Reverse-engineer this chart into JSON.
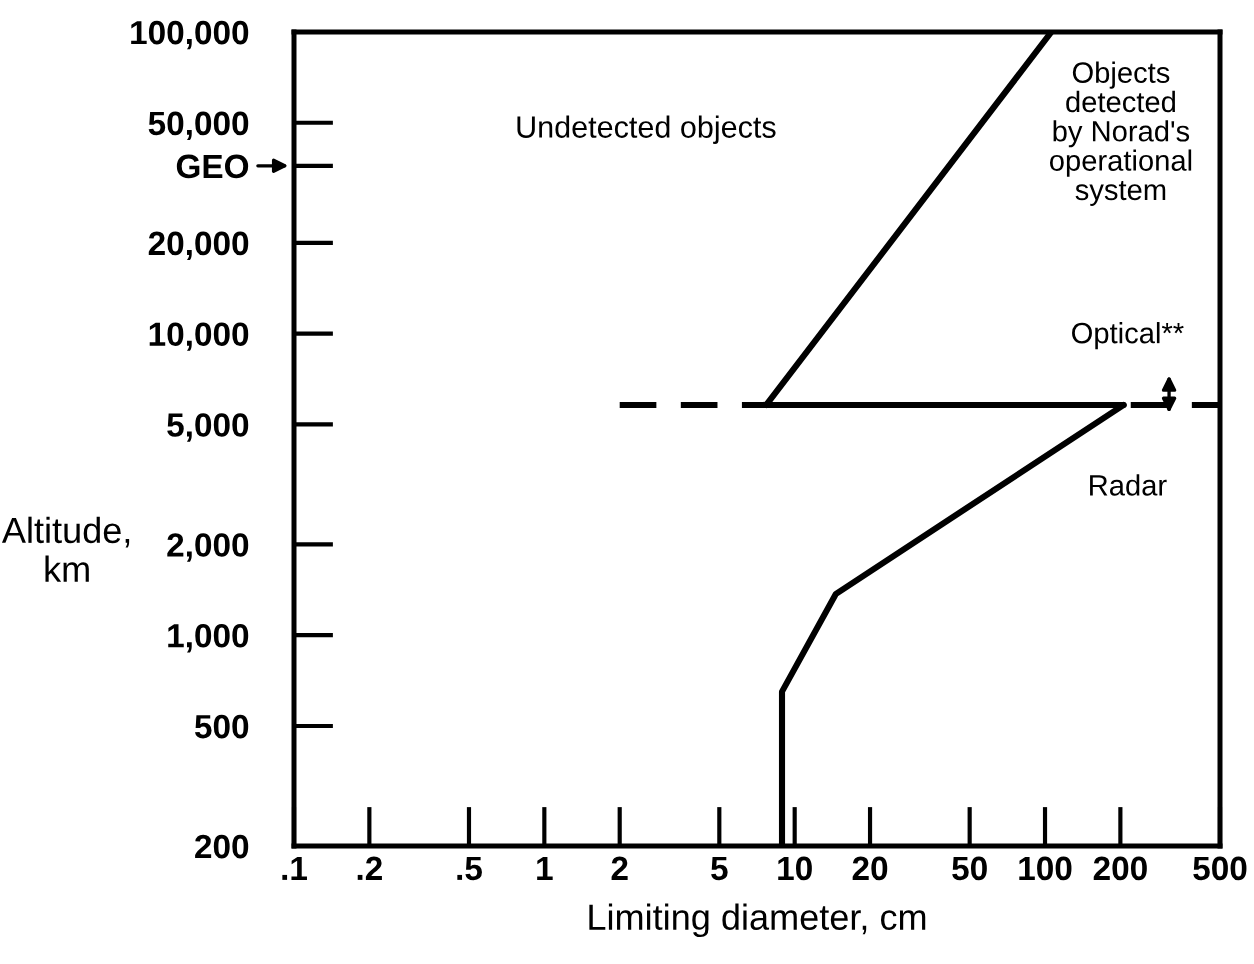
{
  "chart_data": {
    "type": "line",
    "xlabel": "Limiting diameter, cm",
    "ylabel": "Altitude,\nkm",
    "log": "xy",
    "xlim": [
      0.1,
      500
    ],
    "ylim": [
      200,
      100000
    ],
    "xticks": [
      {
        "value": 0.1,
        "label": ".1"
      },
      {
        "value": 0.2,
        "label": ".2"
      },
      {
        "value": 0.5,
        "label": ".5"
      },
      1,
      2,
      5,
      10,
      20,
      50,
      100,
      200,
      500
    ],
    "yticks": [
      200,
      500,
      {
        "value": 1000,
        "label": "1,000"
      },
      {
        "value": 2000,
        "label": "2,000"
      },
      {
        "value": 5000,
        "label": "5,000"
      },
      {
        "value": 10000,
        "label": "10,000"
      },
      {
        "value": 20000,
        "label": "20,000"
      },
      {
        "value": 36000,
        "label": "GEO"
      },
      {
        "value": 50000,
        "label": "50,000"
      },
      {
        "value": 100000,
        "label": "100,000"
      }
    ],
    "series": [
      {
        "color": "#000000",
        "x": [
          8.9,
          8.9,
          14.6,
          206
        ],
        "values": [
          200,
          650,
          1370,
          5800
        ],
        "line_style": "solid"
      },
      {
        "color": "#000000",
        "x": [
          7.7,
          106
        ],
        "values": [
          5800,
          100000
        ],
        "line_style": "solid"
      },
      {
        "color": "#000000",
        "x": [
          7.7,
          206
        ],
        "values": [
          5800,
          5800
        ],
        "line_style": "solid"
      },
      {
        "color": "#000000",
        "x": [
          2,
          7.7
        ],
        "values": [
          5800,
          5800
        ],
        "line_style": "dashed"
      },
      {
        "color": "#000000",
        "x": [
          220,
          500
        ],
        "values": [
          5800,
          5800
        ],
        "line_style": "dashed"
      }
    ],
    "annotations": [
      "Undetected objects",
      "Objects\ndetected\nby Norad's\noperational\nsystem",
      "Optical**",
      "Radar"
    ],
    "grid": false,
    "legend": false
  }
}
